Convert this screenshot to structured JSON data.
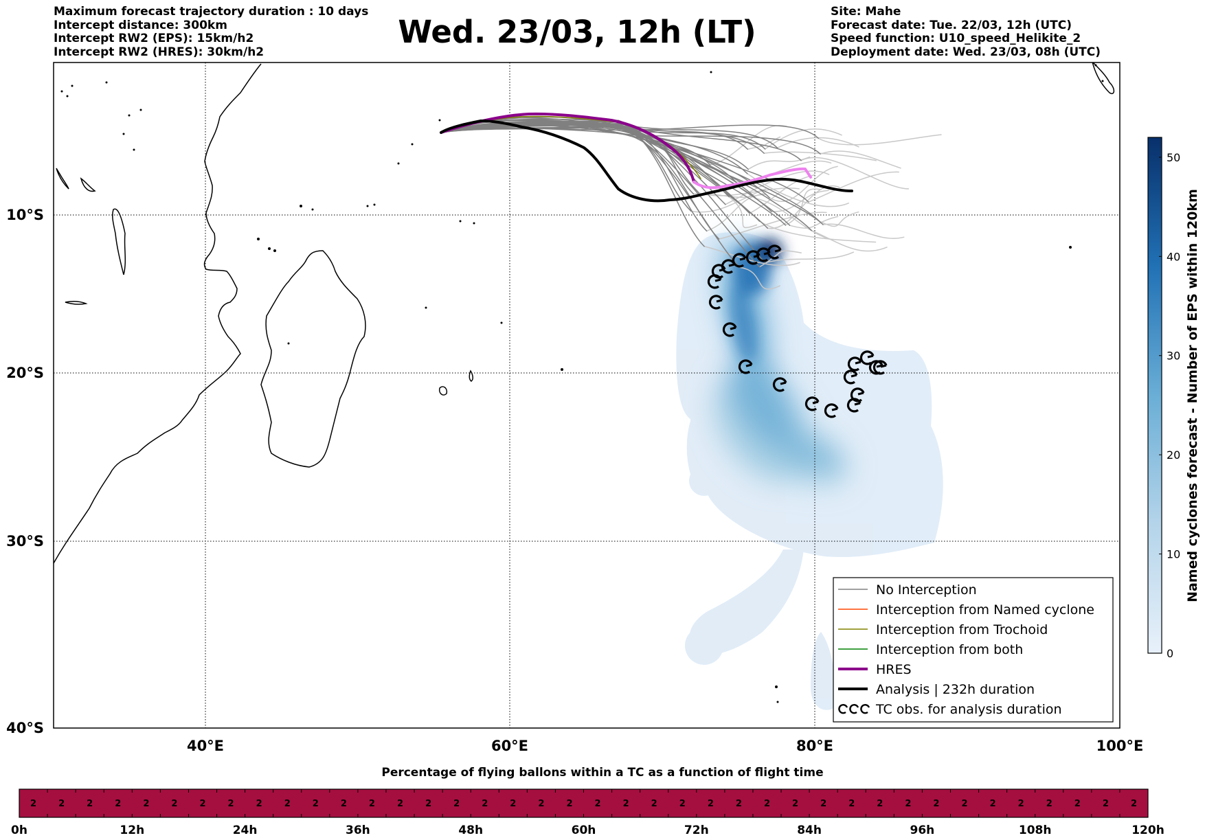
{
  "header_left": [
    "Maximum forecast trajectory duration : 10 days",
    "Intercept distance: 300km",
    "Intercept RW2 (EPS):  15km/h2",
    "Intercept RW2 (HRES): 30km/h2"
  ],
  "header_right": [
    "Site: Mahe",
    "Forecast date: Tue. 22/03, 12h (UTC)",
    "Speed function: U10_speed_Helikite_2",
    "Deployment date: Wed. 23/03, 08h (UTC)"
  ],
  "title": "Wed. 23/03, 12h (LT)",
  "map": {
    "lon_ticks": [
      "40°E",
      "60°E",
      "80°E",
      "100°E"
    ],
    "lat_ticks": [
      "10°S",
      "20°S",
      "30°S",
      "40°S"
    ],
    "lon_range": [
      30,
      100
    ],
    "lat_range": [
      -40,
      -0.5
    ]
  },
  "legend": {
    "items": [
      {
        "label": "No Interception",
        "color": "#808080",
        "style": "thin"
      },
      {
        "label": "Interception from Named cyclone",
        "color": "#ff4500",
        "style": "thin"
      },
      {
        "label": "Interception from Trochoid",
        "color": "#808000",
        "style": "thin"
      },
      {
        "label": "Interception from both",
        "color": "#008000",
        "style": "thin"
      },
      {
        "label": "HRES",
        "color": "#8b008b",
        "style": "thick"
      },
      {
        "label": "Analysis | 232h duration",
        "color": "#000000",
        "style": "thick"
      },
      {
        "label": "TC obs. for analysis duration",
        "color": "#000000",
        "style": "cyclone"
      }
    ]
  },
  "colorbar": {
    "label": "Named cyclones forecast - Number of EPS within 120km",
    "ticks": [
      "0",
      "10",
      "20",
      "30",
      "40",
      "50"
    ],
    "range": [
      0,
      52
    ],
    "color_low": "#deebf7",
    "color_high": "#08306b"
  },
  "timestrip": {
    "title": "Percentage of flying ballons within a TC as a function of flight time",
    "value_label": "2",
    "cell_count": 40,
    "fill_color": "#a50f40",
    "tick_labels": [
      "0h",
      "12h",
      "24h",
      "36h",
      "48h",
      "60h",
      "72h",
      "84h",
      "96h",
      "108h",
      "120h"
    ]
  },
  "colors": {
    "hres": "#8b008b",
    "hres_tail": "#ee82ee",
    "analysis": "#000000",
    "eps": "#808080",
    "eps_light": "#c8c8c8",
    "trochoid": "#808000"
  }
}
